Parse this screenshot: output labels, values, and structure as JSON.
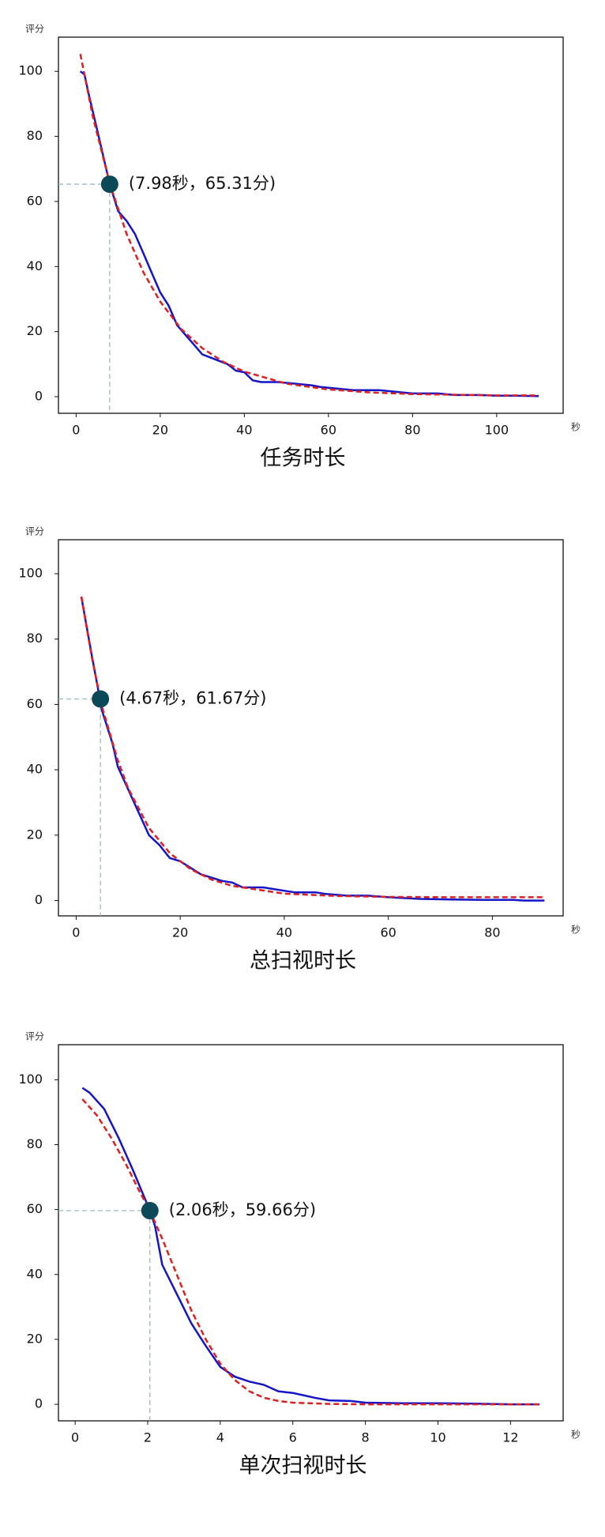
{
  "chart_data": [
    {
      "type": "line",
      "title": "任务时长",
      "ylabel": "评分",
      "xlabel": "秒",
      "xlim": [
        -4.2,
        115.8
      ],
      "ylim": [
        -5.1,
        110.5
      ],
      "xticks": [
        0,
        20,
        40,
        60,
        80,
        100
      ],
      "yticks": [
        0,
        20,
        40,
        60,
        80,
        100
      ],
      "series": [
        {
          "color": "#1414c8",
          "dashed": false,
          "x": [
            1,
            2,
            3,
            5,
            8,
            10,
            12,
            14,
            16,
            18,
            20,
            22,
            24,
            26,
            28,
            30,
            32,
            34,
            36,
            38,
            40,
            42,
            44,
            48,
            52,
            56,
            58,
            62,
            66,
            72,
            76,
            80,
            86,
            90,
            96,
            100,
            104,
            110
          ],
          "values": [
            100,
            99,
            93,
            82,
            65.3,
            57,
            54,
            50,
            44,
            38,
            32,
            28,
            22,
            19,
            16,
            13,
            12,
            11,
            10,
            8,
            7.5,
            5,
            4.5,
            4.5,
            4,
            3.5,
            3,
            2.5,
            2,
            2,
            1.5,
            1,
            1,
            0.5,
            0.5,
            0.3,
            0.3,
            0.2
          ]
        },
        {
          "color": "#dd2020",
          "dashed": true,
          "x": [
            1,
            4,
            8,
            12,
            16,
            20,
            25,
            30,
            35,
            40,
            50,
            60,
            70,
            80,
            90,
            100,
            110
          ],
          "values": [
            105.3,
            85.9,
            65.5,
            50,
            38.2,
            29.2,
            20.8,
            14.9,
            10.7,
            7.7,
            4,
            2.2,
            1.3,
            0.8,
            0.6,
            0.4,
            0.4
          ]
        }
      ],
      "annotation": {
        "x": 7.98,
        "y": 65.31,
        "label": "(7.98秒，65.31分)",
        "color": "#0b4858"
      }
    },
    {
      "type": "line",
      "title": "总扫视时长",
      "ylabel": "评分",
      "xlabel": "秒",
      "xlim": [
        -3.4,
        93.6
      ],
      "ylim": [
        -4.7,
        110.4
      ],
      "xticks": [
        0,
        20,
        40,
        60,
        80
      ],
      "yticks": [
        0,
        20,
        40,
        60,
        80,
        100
      ],
      "series": [
        {
          "color": "#1414c8",
          "dashed": false,
          "x": [
            1,
            3,
            5,
            7,
            8,
            10,
            12,
            14,
            16,
            18,
            20,
            22,
            24,
            26,
            28,
            30,
            32,
            36,
            38,
            40,
            42,
            46,
            48,
            52,
            56,
            60,
            66,
            72,
            78,
            84,
            86,
            90
          ],
          "values": [
            93,
            75,
            58,
            48,
            41,
            34,
            27,
            20,
            17,
            13,
            12,
            10,
            8,
            7,
            6,
            5.5,
            4,
            4,
            3.5,
            3,
            2.5,
            2.5,
            2,
            1.5,
            1.5,
            1,
            0.5,
            0.3,
            0.2,
            0.2,
            0,
            0
          ]
        },
        {
          "color": "#dd2020",
          "dashed": true,
          "x": [
            1,
            3,
            5,
            8,
            10,
            14,
            18,
            22,
            26,
            30,
            40,
            50,
            60,
            70,
            80,
            90
          ],
          "values": [
            93,
            74.4,
            59.2,
            42.9,
            34.3,
            22.2,
            14.5,
            9.6,
            6.4,
            4.5,
            2.1,
            1.4,
            1.1,
            1.04,
            1,
            1
          ]
        }
      ],
      "annotation": {
        "x": 4.67,
        "y": 61.67,
        "label": "(4.67秒，61.67分)",
        "color": "#0b4858"
      }
    },
    {
      "type": "line",
      "title": "单次扫视时长",
      "ylabel": "评分",
      "xlabel": "秒",
      "xlim": [
        -0.46,
        13.45
      ],
      "ylim": [
        -5.1,
        110.8
      ],
      "xticks": [
        0,
        2,
        4,
        6,
        8,
        10,
        12
      ],
      "yticks": [
        0,
        20,
        40,
        60,
        80,
        100
      ],
      "series": [
        {
          "color": "#1414c8",
          "dashed": false,
          "x": [
            0.2,
            0.4,
            0.8,
            1.2,
            1.6,
            2.06,
            2.2,
            2.4,
            2.8,
            3.2,
            3.6,
            4,
            4.4,
            4.8,
            5.2,
            5.6,
            6,
            6.6,
            7,
            7.6,
            8,
            9,
            10,
            11,
            12,
            12.8
          ],
          "values": [
            97.5,
            96,
            91,
            82,
            72,
            59.66,
            55,
            43,
            34,
            25,
            18,
            11.5,
            8.5,
            7,
            6,
            4,
            3.5,
            2,
            1.2,
            1,
            0.5,
            0.3,
            0.3,
            0.2,
            0,
            0
          ]
        },
        {
          "color": "#dd2020",
          "dashed": true,
          "x": [
            0.2,
            0.6,
            1,
            1.4,
            1.8,
            2.06,
            2.4,
            2.8,
            3.2,
            3.6,
            4,
            4.4,
            4.8,
            5.2,
            5.6,
            6,
            7,
            8,
            10,
            12.8
          ],
          "values": [
            94,
            89,
            82,
            74,
            65,
            59.66,
            51,
            40,
            29,
            20,
            12.5,
            7.5,
            4,
            2,
            1,
            0.5,
            0.1,
            0,
            0,
            0
          ]
        }
      ],
      "annotation": {
        "x": 2.06,
        "y": 59.66,
        "label": "(2.06秒，59.66分)",
        "color": "#0b4858"
      }
    }
  ]
}
